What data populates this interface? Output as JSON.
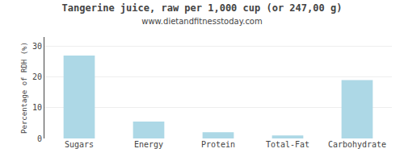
{
  "chart_data": {
    "type": "bar",
    "title": "Tangerine juice, raw per 1,000 cup (or 247,00 g)",
    "subtitle": "www.dietandfitnesstoday.com",
    "categories": [
      "Sugars",
      "Energy",
      "Protein",
      "Total-Fat",
      "Carbohydrate"
    ],
    "values": [
      27,
      5.5,
      2,
      1,
      19
    ],
    "color": "#add8e6",
    "ylabel": "Percentage of RDH (%)",
    "ylim": [
      0,
      33
    ],
    "yticks": [
      0,
      10,
      20,
      30
    ],
    "grid": true
  }
}
